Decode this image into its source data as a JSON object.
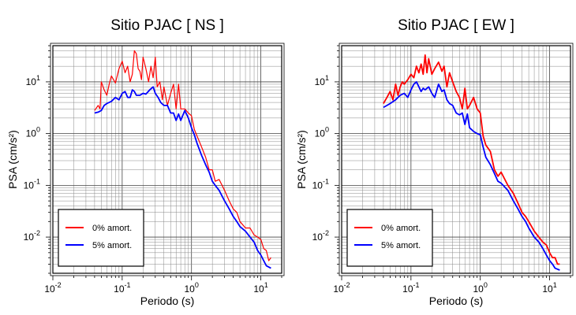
{
  "chart_data": [
    {
      "type": "line",
      "title": "Sitio PJAC [ NS ]",
      "xlabel": "Periodo (s)",
      "ylabel": "PSA (cm/s²)",
      "x_scale": "log",
      "y_scale": "log",
      "xlim": [
        0.01,
        20
      ],
      "ylim": [
        0.002,
        50
      ],
      "x_ticks": [
        {
          "value": 0.01,
          "base": "10",
          "exp": "-2"
        },
        {
          "value": 0.1,
          "base": "10",
          "exp": "-1"
        },
        {
          "value": 1,
          "base": "10",
          "exp": "0"
        },
        {
          "value": 10,
          "base": "10",
          "exp": "1"
        }
      ],
      "y_ticks": [
        {
          "value": 0.01,
          "base": "10",
          "exp": "-2"
        },
        {
          "value": 0.1,
          "base": "10",
          "exp": "-1"
        },
        {
          "value": 1,
          "base": "10",
          "exp": "0"
        },
        {
          "value": 10,
          "base": "10",
          "exp": "1"
        }
      ],
      "grid": true,
      "legend_position": "bottom-left",
      "series": [
        {
          "name": "0% amort.",
          "color": "#ff0000",
          "x": [
            0.04,
            0.045,
            0.048,
            0.05,
            0.055,
            0.06,
            0.065,
            0.07,
            0.075,
            0.08,
            0.09,
            0.1,
            0.11,
            0.12,
            0.13,
            0.14,
            0.15,
            0.16,
            0.17,
            0.18,
            0.19,
            0.2,
            0.22,
            0.24,
            0.26,
            0.28,
            0.3,
            0.32,
            0.35,
            0.38,
            0.4,
            0.45,
            0.5,
            0.55,
            0.6,
            0.65,
            0.7,
            0.8,
            0.9,
            1.0,
            1.1,
            1.2,
            1.4,
            1.6,
            1.8,
            2.0,
            2.2,
            2.5,
            3.0,
            3.5,
            4.0,
            4.5,
            5.0,
            6.0,
            7.0,
            8.0,
            9.0,
            10.0,
            11.0,
            12.0,
            13.0,
            14.0
          ],
          "y": [
            2.8,
            3.5,
            3.0,
            10.0,
            7.0,
            5.5,
            9.0,
            13.0,
            11.0,
            9.5,
            18.0,
            25.0,
            15.0,
            20.0,
            10.0,
            14.0,
            40.0,
            35.0,
            18.0,
            16.0,
            11.0,
            30.0,
            18.0,
            10.0,
            20.0,
            12.0,
            30.0,
            8.0,
            10.0,
            4.5,
            8.0,
            3.5,
            6.0,
            9.0,
            3.0,
            9.0,
            3.0,
            3.0,
            2.5,
            2.2,
            1.2,
            0.9,
            0.55,
            0.35,
            0.2,
            0.2,
            0.12,
            0.13,
            0.08,
            0.05,
            0.035,
            0.03,
            0.02,
            0.015,
            0.015,
            0.011,
            0.01,
            0.009,
            0.006,
            0.0055,
            0.0035,
            0.004
          ]
        },
        {
          "name": "5% amort.",
          "color": "#0000ff",
          "x": [
            0.04,
            0.045,
            0.05,
            0.055,
            0.06,
            0.07,
            0.08,
            0.09,
            0.1,
            0.11,
            0.12,
            0.13,
            0.14,
            0.15,
            0.16,
            0.18,
            0.2,
            0.22,
            0.25,
            0.28,
            0.3,
            0.33,
            0.36,
            0.4,
            0.45,
            0.5,
            0.55,
            0.6,
            0.65,
            0.7,
            0.8,
            0.9,
            1.0,
            1.1,
            1.2,
            1.4,
            1.6,
            1.8,
            2.0,
            2.2,
            2.5,
            3.0,
            3.5,
            4.0,
            4.5,
            5.0,
            6.0,
            7.0,
            8.0,
            9.0,
            10.0,
            11.0,
            12.0,
            14.0
          ],
          "y": [
            2.5,
            2.6,
            2.8,
            3.5,
            3.8,
            4.2,
            5.0,
            4.5,
            6.0,
            6.5,
            5.0,
            5.0,
            7.0,
            6.5,
            5.5,
            5.5,
            6.0,
            5.8,
            7.0,
            8.0,
            6.0,
            5.0,
            4.0,
            3.5,
            3.5,
            2.5,
            2.5,
            1.8,
            2.4,
            1.8,
            2.8,
            2.0,
            1.3,
            0.95,
            0.65,
            0.38,
            0.25,
            0.18,
            0.12,
            0.1,
            0.08,
            0.05,
            0.035,
            0.025,
            0.02,
            0.016,
            0.013,
            0.01,
            0.008,
            0.0055,
            0.0045,
            0.0035,
            0.0028,
            0.0025
          ]
        }
      ]
    },
    {
      "type": "line",
      "title": "Sitio PJAC [ EW ]",
      "xlabel": "Periodo (s)",
      "ylabel": "PSA (cm/s²)",
      "x_scale": "log",
      "y_scale": "log",
      "xlim": [
        0.01,
        20
      ],
      "ylim": [
        0.002,
        50
      ],
      "x_ticks": [
        {
          "value": 0.01,
          "base": "10",
          "exp": "-2"
        },
        {
          "value": 0.1,
          "base": "10",
          "exp": "-1"
        },
        {
          "value": 1,
          "base": "10",
          "exp": "0"
        },
        {
          "value": 10,
          "base": "10",
          "exp": "1"
        }
      ],
      "y_ticks": [
        {
          "value": 0.01,
          "base": "10",
          "exp": "-2"
        },
        {
          "value": 0.1,
          "base": "10",
          "exp": "-1"
        },
        {
          "value": 1,
          "base": "10",
          "exp": "0"
        },
        {
          "value": 10,
          "base": "10",
          "exp": "1"
        }
      ],
      "grid": true,
      "legend_position": "bottom-left",
      "series": [
        {
          "name": "0% amort.",
          "color": "#ff0000",
          "x": [
            0.04,
            0.045,
            0.05,
            0.055,
            0.06,
            0.065,
            0.07,
            0.075,
            0.08,
            0.09,
            0.1,
            0.11,
            0.12,
            0.13,
            0.14,
            0.15,
            0.16,
            0.17,
            0.18,
            0.2,
            0.22,
            0.25,
            0.28,
            0.3,
            0.33,
            0.36,
            0.4,
            0.45,
            0.5,
            0.55,
            0.6,
            0.65,
            0.7,
            0.8,
            0.9,
            1.0,
            1.1,
            1.2,
            1.4,
            1.6,
            1.8,
            2.0,
            2.5,
            3.0,
            3.5,
            4.0,
            4.5,
            5.0,
            6.0,
            7.0,
            8.0,
            9.0,
            10.0,
            11.0,
            12.0,
            13.0,
            14.0
          ],
          "y": [
            3.8,
            5.0,
            6.5,
            4.5,
            9.0,
            5.5,
            8.0,
            10.0,
            9.0,
            11.0,
            14.0,
            12.0,
            20.0,
            15.0,
            22.0,
            14.0,
            33.0,
            15.0,
            28.0,
            14.0,
            18.0,
            24.0,
            16.0,
            20.0,
            8.0,
            15.0,
            10.0,
            6.5,
            5.0,
            3.0,
            7.5,
            3.0,
            3.5,
            5.0,
            3.0,
            2.5,
            0.9,
            0.6,
            0.45,
            0.2,
            0.15,
            0.18,
            0.1,
            0.07,
            0.045,
            0.03,
            0.025,
            0.02,
            0.013,
            0.01,
            0.008,
            0.007,
            0.005,
            0.004,
            0.004,
            0.003,
            0.003
          ]
        },
        {
          "name": "5% amort.",
          "color": "#0000ff",
          "x": [
            0.04,
            0.045,
            0.05,
            0.06,
            0.07,
            0.08,
            0.09,
            0.1,
            0.11,
            0.12,
            0.13,
            0.14,
            0.15,
            0.16,
            0.18,
            0.2,
            0.22,
            0.25,
            0.28,
            0.3,
            0.33,
            0.36,
            0.4,
            0.45,
            0.5,
            0.55,
            0.6,
            0.65,
            0.7,
            0.8,
            0.9,
            1.0,
            1.1,
            1.2,
            1.4,
            1.6,
            1.8,
            2.0,
            2.5,
            3.0,
            3.5,
            4.0,
            4.5,
            5.0,
            6.0,
            7.0,
            8.0,
            9.0,
            10.0,
            11.0,
            12.0,
            14.0
          ],
          "y": [
            3.2,
            3.5,
            3.8,
            4.5,
            5.5,
            6.0,
            5.0,
            7.0,
            9.0,
            10.0,
            8.0,
            6.5,
            7.5,
            7.0,
            8.0,
            6.0,
            5.0,
            9.0,
            6.5,
            7.0,
            4.5,
            3.8,
            3.5,
            2.5,
            2.3,
            2.5,
            1.5,
            2.4,
            1.3,
            1.1,
            1.0,
            0.95,
            0.55,
            0.35,
            0.25,
            0.17,
            0.12,
            0.11,
            0.08,
            0.05,
            0.035,
            0.025,
            0.02,
            0.015,
            0.01,
            0.008,
            0.006,
            0.0045,
            0.0035,
            0.003,
            0.0025,
            0.0023
          ]
        }
      ]
    }
  ]
}
